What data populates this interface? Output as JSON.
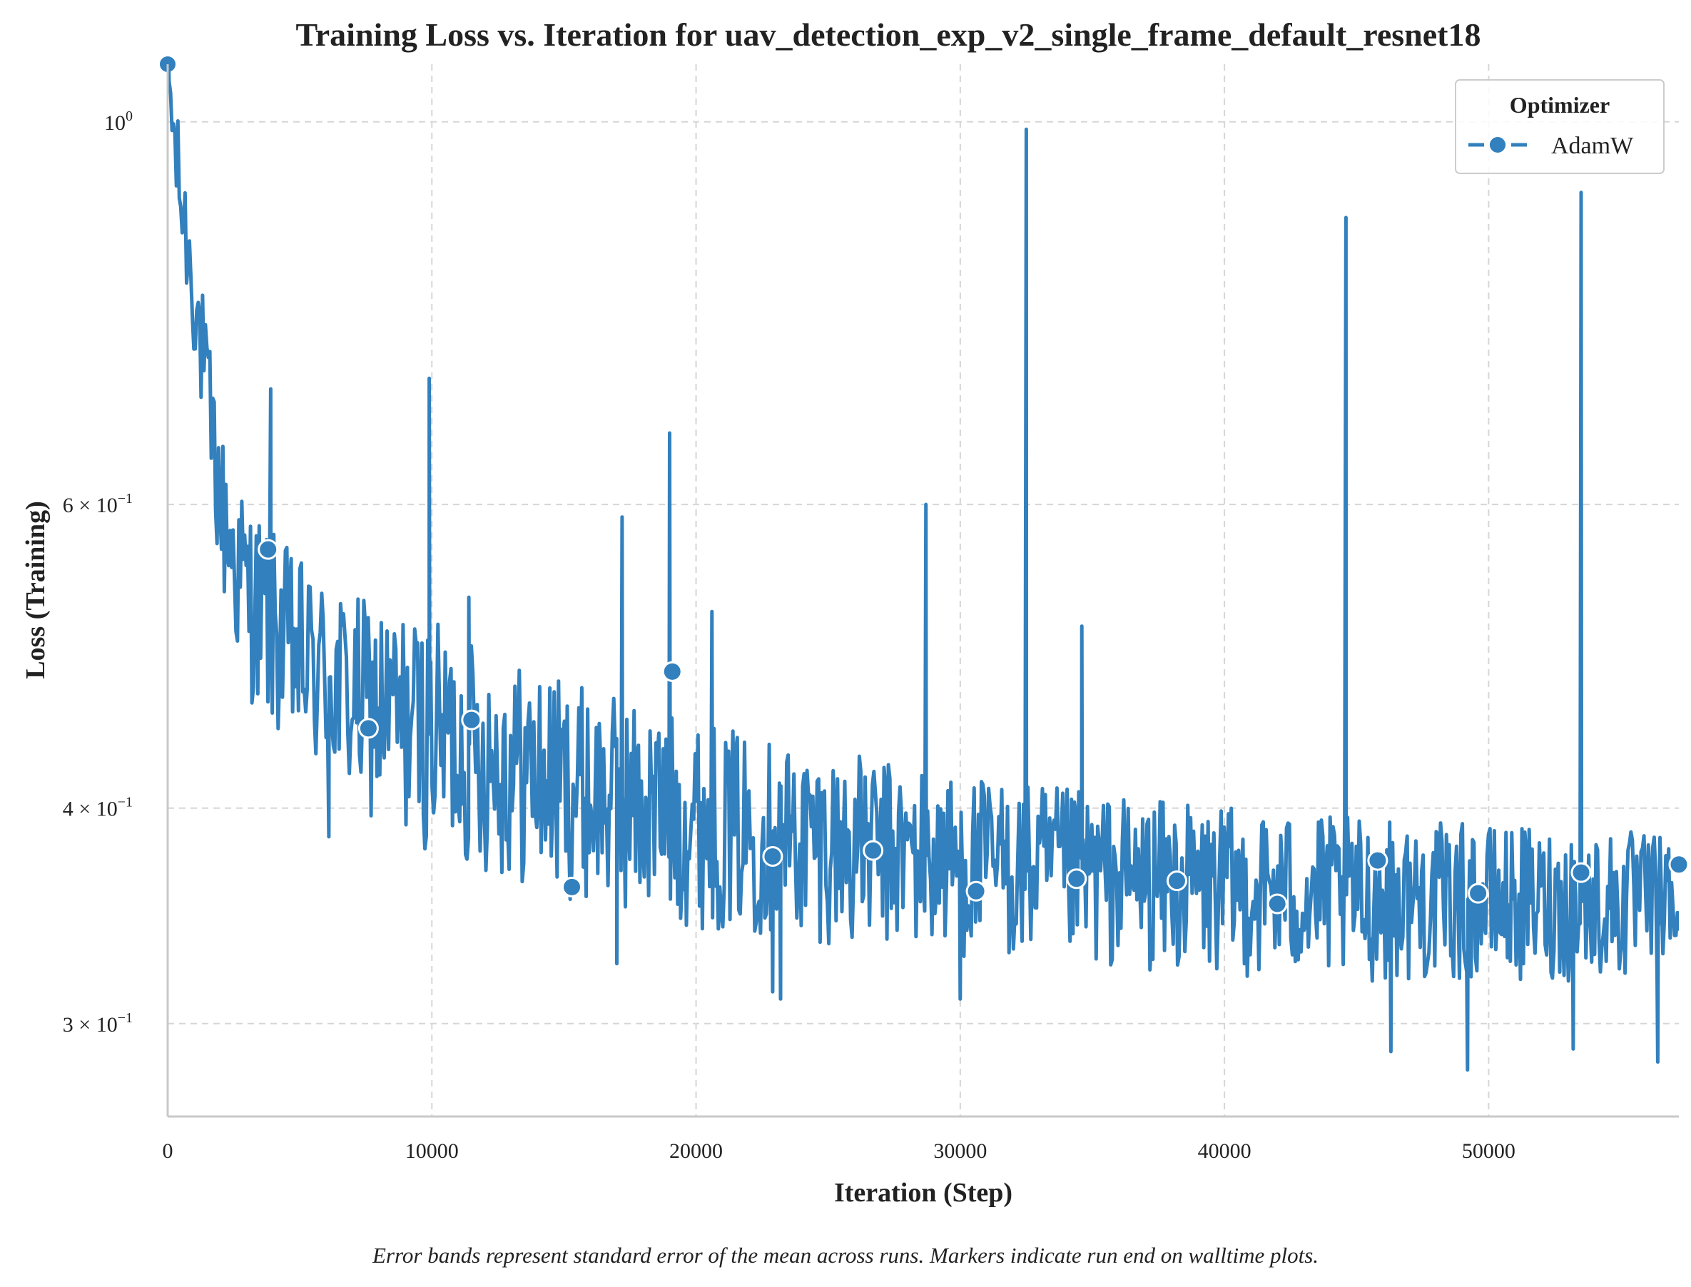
{
  "chart_data": {
    "type": "line",
    "title": "Training Loss vs. Iteration for uav_detection_exp_v2_single_frame_default_resnet18",
    "xlabel": "Iteration (Step)",
    "ylabel": "Loss (Training)",
    "xlim": [
      0,
      57200
    ],
    "ylim": [
      0.265,
      1.08
    ],
    "yscale": "log",
    "xticks": [
      0,
      10000,
      20000,
      30000,
      40000,
      50000
    ],
    "xtick_labels": [
      "0",
      "10000",
      "20000",
      "30000",
      "40000",
      "50000"
    ],
    "yticks": [
      {
        "value": 1.0,
        "base": "10",
        "exp": "0",
        "mant": ""
      },
      {
        "value": 0.6,
        "base": "10",
        "exp": "−1",
        "mant": "6 × "
      },
      {
        "value": 0.4,
        "base": "10",
        "exp": "−1",
        "mant": "4 × "
      },
      {
        "value": 0.3,
        "base": "10",
        "exp": "−1",
        "mant": "3 × "
      }
    ],
    "grid": true,
    "legend": {
      "title": "Optimizer",
      "position": "top-right",
      "entries": [
        "AdamW"
      ]
    },
    "series": [
      {
        "name": "AdamW",
        "color": "#3280bd",
        "style": "line-with-circle-markers",
        "trend": [
          [
            0,
            1.08
          ],
          [
            200,
            0.99
          ],
          [
            500,
            0.9
          ],
          [
            1000,
            0.8
          ],
          [
            1500,
            0.69
          ],
          [
            2000,
            0.6
          ],
          [
            2500,
            0.56
          ],
          [
            3000,
            0.535
          ],
          [
            4000,
            0.51
          ],
          [
            5000,
            0.49
          ],
          [
            7000,
            0.465
          ],
          [
            10000,
            0.445
          ],
          [
            13000,
            0.425
          ],
          [
            16000,
            0.41
          ],
          [
            20000,
            0.395
          ],
          [
            25000,
            0.383
          ],
          [
            30000,
            0.373
          ],
          [
            35000,
            0.366
          ],
          [
            40000,
            0.36
          ],
          [
            45000,
            0.356
          ],
          [
            50000,
            0.354
          ],
          [
            57200,
            0.352
          ]
        ],
        "noise_band": [
          [
            0,
            0.03
          ],
          [
            3000,
            0.06
          ],
          [
            10000,
            0.07
          ],
          [
            30000,
            0.055
          ],
          [
            57200,
            0.045
          ]
        ],
        "spikes": [
          [
            3900,
            0.7
          ],
          [
            9900,
            0.71
          ],
          [
            11400,
            0.53
          ],
          [
            17200,
            0.59
          ],
          [
            19000,
            0.66
          ],
          [
            20600,
            0.52
          ],
          [
            28700,
            0.6
          ],
          [
            32500,
            0.99
          ],
          [
            34600,
            0.51
          ],
          [
            44600,
            0.88
          ],
          [
            53500,
            0.91
          ]
        ],
        "dips": [
          [
            6100,
            0.385
          ],
          [
            17000,
            0.325
          ],
          [
            22900,
            0.313
          ],
          [
            23200,
            0.31
          ],
          [
            30000,
            0.31
          ],
          [
            46300,
            0.289
          ],
          [
            49200,
            0.282
          ],
          [
            53200,
            0.29
          ],
          [
            56400,
            0.285
          ]
        ],
        "markers": [
          [
            0,
            1.08
          ],
          [
            3800,
            0.565
          ],
          [
            7600,
            0.445
          ],
          [
            11500,
            0.45
          ],
          [
            15300,
            0.36
          ],
          [
            19100,
            0.48
          ],
          [
            22900,
            0.375
          ],
          [
            26700,
            0.378
          ],
          [
            30600,
            0.358
          ],
          [
            34400,
            0.364
          ],
          [
            38200,
            0.363
          ],
          [
            42000,
            0.352
          ],
          [
            45800,
            0.373
          ],
          [
            49600,
            0.357
          ],
          [
            53500,
            0.367
          ],
          [
            57200,
            0.371
          ]
        ]
      }
    ],
    "footnote": "Error bands represent standard error of the mean across runs. Markers indicate run end on walltime plots."
  }
}
